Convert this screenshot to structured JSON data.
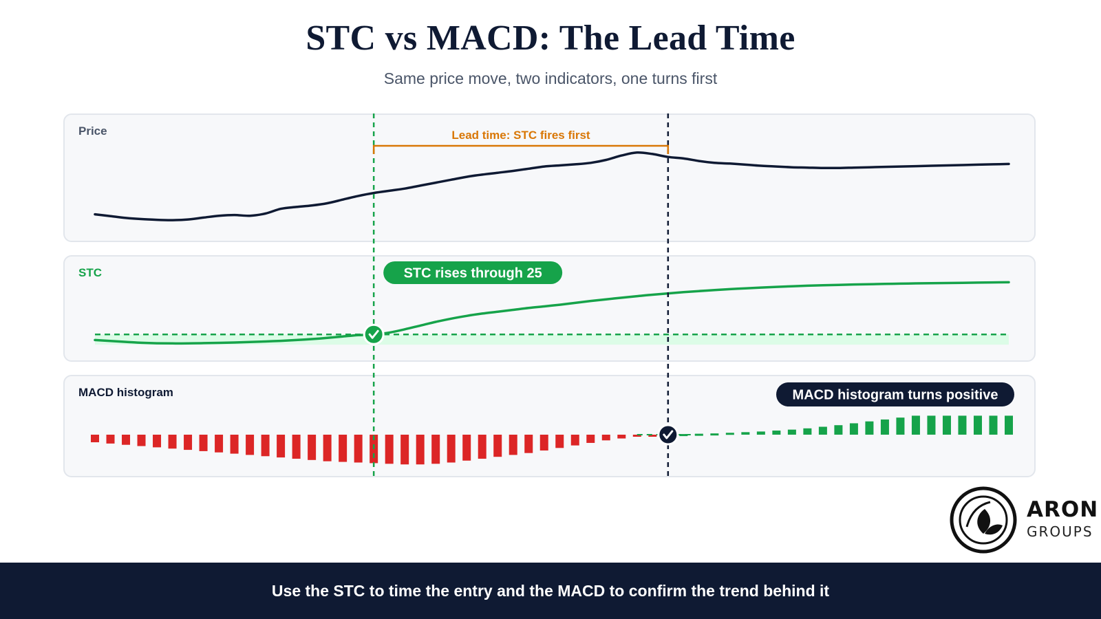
{
  "title": "STC vs MACD: The Lead Time",
  "subtitle": "Same price move, two indicators, one turns first",
  "footer_text": "Use the STC to time the entry and the MACD to confirm the trend behind it",
  "logo": {
    "word1": "ARON",
    "word2": "GROUPS"
  },
  "colors": {
    "navy": "#0f1a33",
    "green": "#16a34a",
    "green_fill": "#dcfce7",
    "red": "#dc2626",
    "orange": "#d97706",
    "panel_bg": "#f7f8fa"
  },
  "chart_data": [
    {
      "type": "line",
      "panel": "Price",
      "x": [
        0,
        1,
        2,
        3,
        4,
        5,
        6,
        7,
        8,
        9,
        10,
        11,
        12,
        13,
        14,
        15,
        16,
        17,
        18,
        19,
        20,
        21,
        22,
        23,
        24,
        25,
        26,
        27,
        28,
        29,
        30,
        31,
        32,
        33,
        34,
        35,
        36,
        37,
        38,
        39,
        40,
        41,
        42,
        43,
        44,
        45,
        46,
        47,
        48,
        49,
        50,
        51,
        52,
        53,
        54,
        55,
        56,
        57,
        58,
        59
      ],
      "values": [
        100.0,
        99.5,
        99.0,
        98.7,
        98.5,
        98.4,
        98.6,
        99.1,
        99.6,
        99.8,
        99.6,
        100.2,
        101.5,
        102.0,
        102.4,
        103.0,
        104.0,
        105.0,
        105.8,
        106.4,
        107.0,
        107.8,
        108.6,
        109.4,
        110.2,
        110.8,
        111.3,
        111.8,
        112.4,
        113.0,
        113.3,
        113.6,
        114.0,
        114.8,
        116.0,
        116.8,
        116.4,
        115.6,
        115.2,
        114.5,
        114.0,
        113.8,
        113.5,
        113.2,
        113.0,
        112.8,
        112.7,
        112.6,
        112.6,
        112.7,
        112.8,
        112.9,
        113.0,
        113.1,
        113.2,
        113.3,
        113.4,
        113.5,
        113.6,
        113.7
      ],
      "annotation": "Lead time: STC fires first"
    },
    {
      "type": "line",
      "panel": "STC",
      "x": [
        0,
        1,
        2,
        3,
        4,
        5,
        6,
        7,
        8,
        9,
        10,
        11,
        12,
        13,
        14,
        15,
        16,
        17,
        18,
        19,
        20,
        21,
        22,
        23,
        24,
        25,
        26,
        27,
        28,
        29,
        30,
        31,
        32,
        33,
        34,
        35,
        36,
        37,
        38,
        39,
        40,
        41,
        42,
        43,
        44,
        45,
        46,
        47,
        48,
        49,
        50,
        51,
        52,
        53,
        54,
        55,
        56,
        57,
        58,
        59
      ],
      "values": [
        19.0,
        18.0,
        17.0,
        16.0,
        15.5,
        15.3,
        15.4,
        15.6,
        15.9,
        16.3,
        16.8,
        17.4,
        18.1,
        19.0,
        20.0,
        21.3,
        22.8,
        24.2,
        25.0,
        27.0,
        30.5,
        34.5,
        38.5,
        42.0,
        45.0,
        47.5,
        49.5,
        51.5,
        53.5,
        55.2,
        57.0,
        59.0,
        61.0,
        62.8,
        64.5,
        66.2,
        67.8,
        69.2,
        70.5,
        71.7,
        72.8,
        73.8,
        74.7,
        75.5,
        76.2,
        76.9,
        77.5,
        78.0,
        78.4,
        78.8,
        79.1,
        79.4,
        79.7,
        80.0,
        80.2,
        80.4,
        80.6,
        80.8,
        81.0,
        81.2
      ],
      "threshold": 25,
      "annotation": "STC rises through 25"
    },
    {
      "type": "bar",
      "panel": "MACD histogram",
      "x": [
        0,
        1,
        2,
        3,
        4,
        5,
        6,
        7,
        8,
        9,
        10,
        11,
        12,
        13,
        14,
        15,
        16,
        17,
        18,
        19,
        20,
        21,
        22,
        23,
        24,
        25,
        26,
        27,
        28,
        29,
        30,
        31,
        32,
        33,
        34,
        35,
        36,
        37,
        38,
        39,
        40,
        41,
        42,
        43,
        44,
        45,
        46,
        47,
        48,
        49,
        50,
        51,
        52,
        53,
        54,
        55,
        56,
        57,
        58,
        59
      ],
      "values": [
        -0.24,
        -0.28,
        -0.32,
        -0.36,
        -0.4,
        -0.44,
        -0.48,
        -0.52,
        -0.56,
        -0.6,
        -0.64,
        -0.68,
        -0.72,
        -0.76,
        -0.8,
        -0.84,
        -0.86,
        -0.88,
        -0.9,
        -0.92,
        -0.94,
        -0.94,
        -0.92,
        -0.88,
        -0.82,
        -0.76,
        -0.7,
        -0.64,
        -0.58,
        -0.5,
        -0.42,
        -0.34,
        -0.26,
        -0.18,
        -0.12,
        -0.06,
        -0.02,
        0.0,
        0.02,
        0.03,
        0.04,
        0.06,
        0.08,
        0.1,
        0.13,
        0.16,
        0.2,
        0.25,
        0.3,
        0.36,
        0.42,
        0.48,
        0.54,
        0.6,
        0.6,
        0.6,
        0.6,
        0.6,
        0.6,
        0.6
      ],
      "annotation": "MACD histogram turns positive"
    }
  ],
  "panels": {
    "price": {
      "label": "Price"
    },
    "stc": {
      "label": "STC"
    },
    "macd": {
      "label": "MACD histogram"
    }
  }
}
